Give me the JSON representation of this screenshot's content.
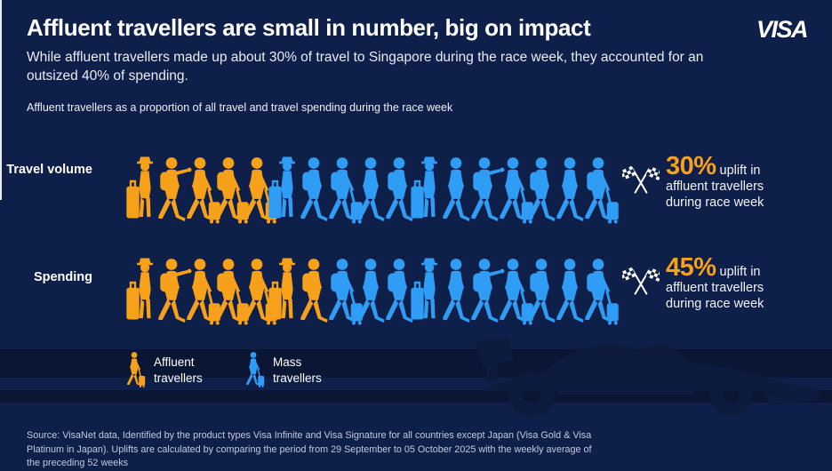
{
  "brand": {
    "logo_text": "VISA"
  },
  "header": {
    "title": "Affluent travellers are small in number, big on impact",
    "subtitle": "While affluent travellers made up about 30% of travel to Singapore during the race week, they accounted for an outsized 40% of spending.",
    "caption": "Affluent travellers as a proportion of all travel and travel spending during the race week"
  },
  "colors": {
    "background": "#0E1F4A",
    "band": "#0A1634",
    "car_silhouette": "#0D1B3E",
    "affluent_orange": "#F7A11A",
    "mass_blue": "#2F9CF5",
    "accent_value": "#F7A11A",
    "text_white": "#FFFFFF"
  },
  "chart_data": {
    "type": "pictogram",
    "title": "Affluent travellers as a proportion of all travel and travel spending during the race week",
    "unit": "traveller icons",
    "icons_per_row": 17,
    "pose_sequence": [
      "suitcase",
      "reach",
      "pull",
      "backpack-pull",
      "pull",
      "suitcase",
      "backpack",
      "backpack-pull",
      "walk",
      "backpack",
      "suitcase",
      "walk",
      "reach",
      "pull",
      "backpack",
      "walk",
      "backpack-pull"
    ],
    "rows": [
      {
        "label": "Travel volume",
        "affluent_icons": 5,
        "mass_icons": 12,
        "affluent_share_pct": 30,
        "callout": {
          "value": "30%",
          "line1": "uplift in",
          "line2": "affluent travellers",
          "line3": "during race week"
        }
      },
      {
        "label": "Spending",
        "affluent_icons": 7,
        "mass_icons": 10,
        "affluent_share_pct": 40,
        "callout": {
          "value": "45%",
          "line1": "uplift in",
          "line2": "affluent travellers",
          "line3": "during race week"
        }
      }
    ],
    "legend": [
      {
        "label": "Affluent travellers",
        "color": "#F7A11A"
      },
      {
        "label": "Mass travellers",
        "color": "#2F9CF5"
      }
    ],
    "legend_position": "bottom-left"
  },
  "source": {
    "text": "Source: VisaNet data, Identified by the product types Visa Infinite and Visa Signature for all countries except Japan (Visa Gold & Visa Platinum in Japan). Uplifts are calculated by comparing the period from 29 September to 05 October 2025 with the weekly average of the preceding 52 weeks"
  }
}
